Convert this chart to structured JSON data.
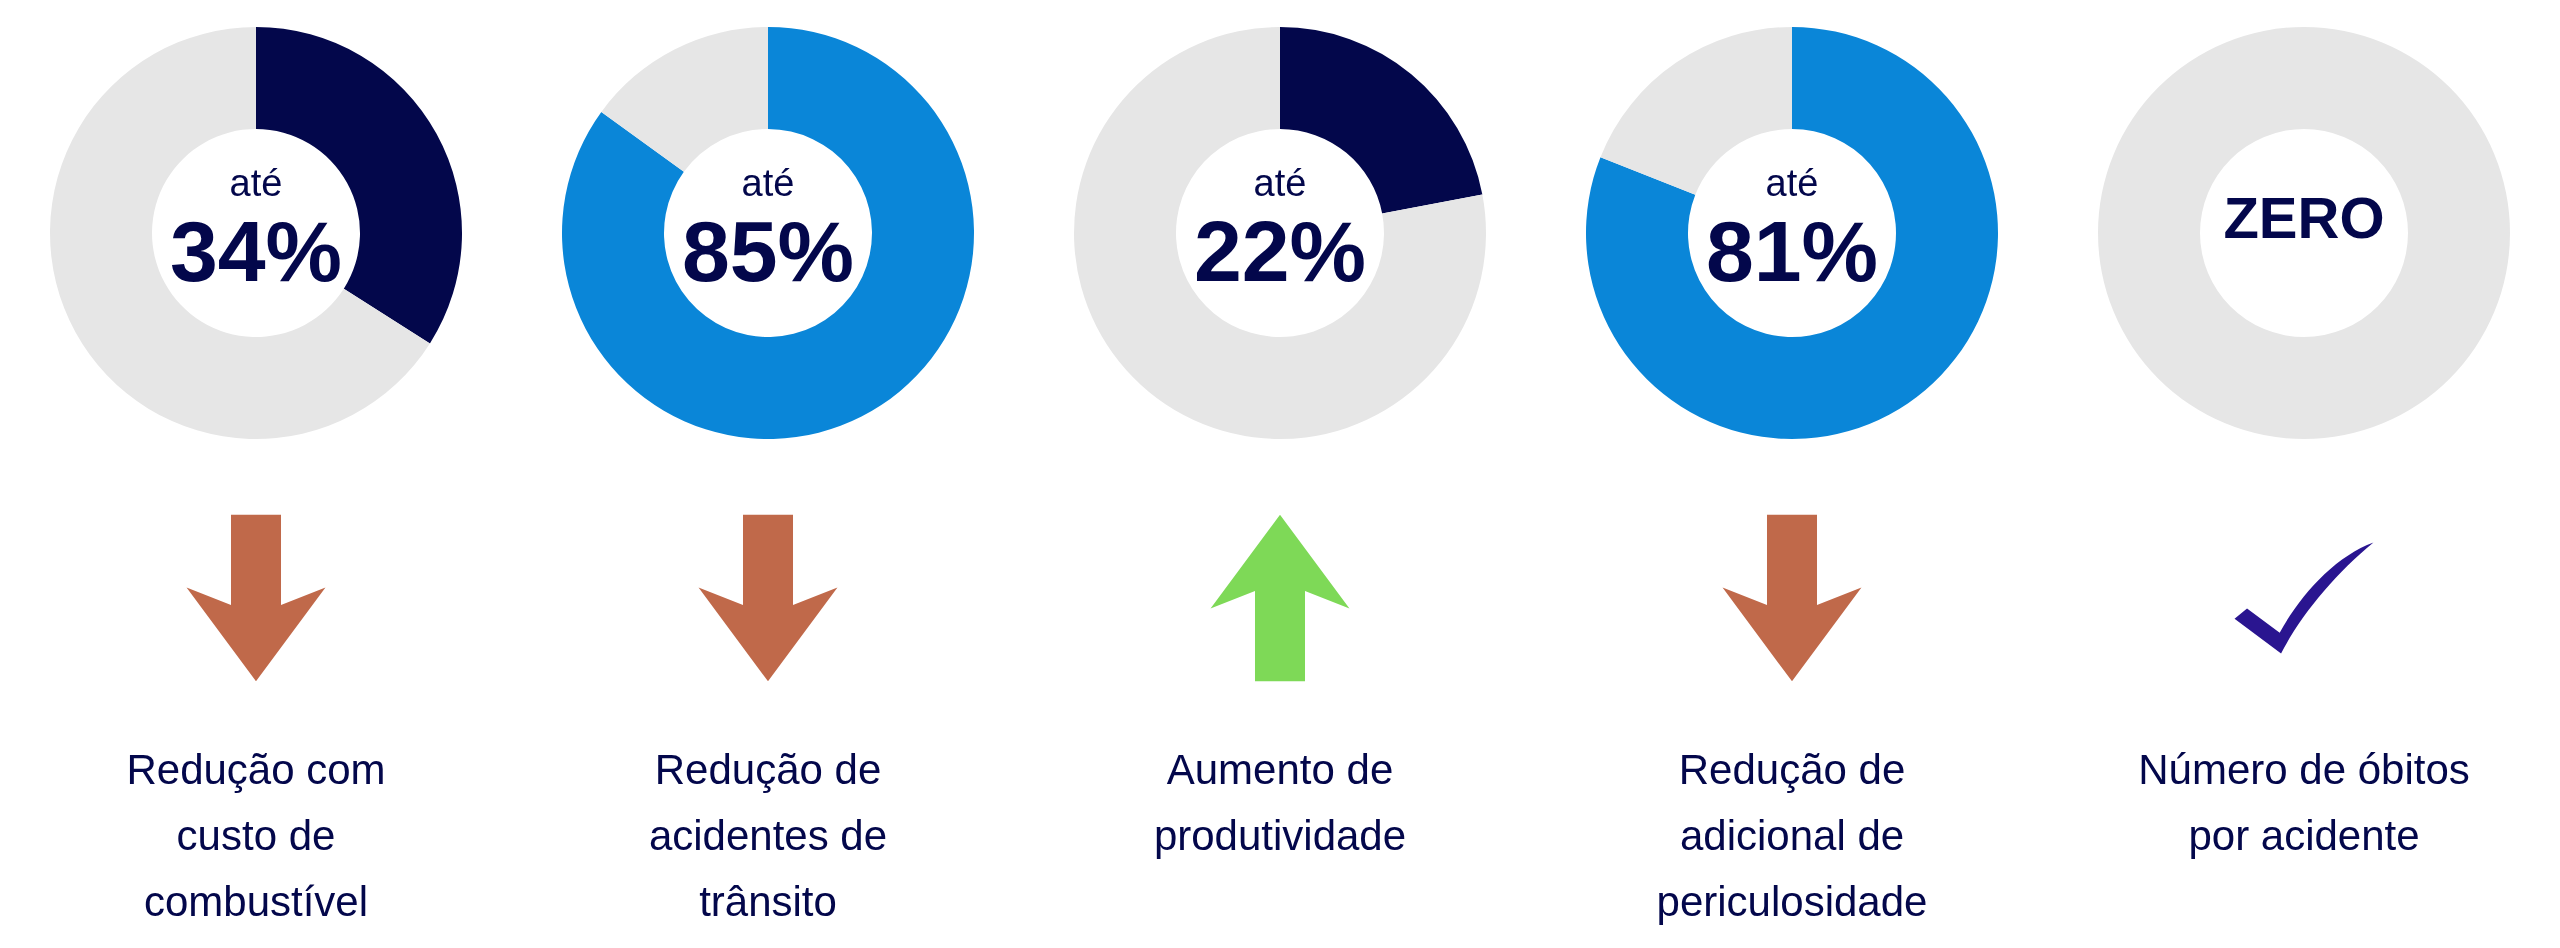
{
  "chart_data": [
    {
      "type": "donut",
      "categories": [
        null,
        null
      ],
      "values": [
        34,
        66
      ],
      "colors": [
        "#03074b",
        "#e6e6e6"
      ],
      "annotations": [
        "até",
        "34%",
        "Redução com custo de combustível"
      ]
    },
    {
      "type": "donut",
      "categories": [
        null,
        null
      ],
      "values": [
        85,
        15
      ],
      "colors": [
        "#0a86d8",
        "#e6e6e6"
      ],
      "annotations": [
        "até",
        "85%",
        "Redução de acidentes de trânsito"
      ]
    },
    {
      "type": "donut",
      "categories": [
        null,
        null
      ],
      "values": [
        22,
        78
      ],
      "colors": [
        "#03074b",
        "#e6e6e6"
      ],
      "annotations": [
        "até",
        "22%",
        "Aumento de produtividade"
      ]
    },
    {
      "type": "donut",
      "categories": [
        null,
        null
      ],
      "values": [
        81,
        19
      ],
      "colors": [
        "#0a86d8",
        "#e6e6e6"
      ],
      "annotations": [
        "até",
        "81%",
        "Redução de adicional de periculosidade"
      ]
    },
    {
      "type": "donut",
      "categories": [
        null,
        null
      ],
      "values": [
        0,
        100
      ],
      "colors": [
        "#03074b",
        "#e6e6e6"
      ],
      "annotations": [
        "ZERO",
        "Número de óbitos por acidente"
      ]
    }
  ]
}
